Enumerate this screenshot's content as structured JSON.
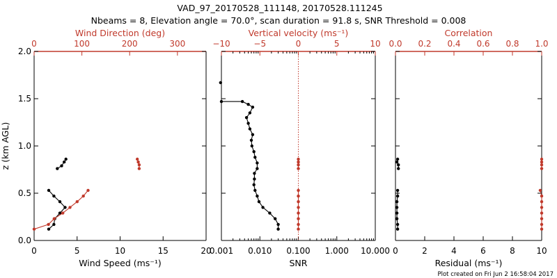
{
  "title_line1": "VAD_97_20170528_111148, 20170528.111245",
  "title_line2": "Nbeams = 8, Elevation angle = 70.0°, scan duration = 91.8 s, SNR Threshold = 0.008",
  "credit": "Plot created on Fri Jun  2 16:58:04 2017",
  "colors": {
    "primary": "#000000",
    "secondary": "#c0392b"
  },
  "chart_data": [
    {
      "type": "line",
      "ylabel": "z (km AGL)",
      "ylim": [
        0,
        2.0
      ],
      "yticks": [
        0.0,
        0.5,
        1.0,
        1.5,
        2.0
      ],
      "ytick_labels": [
        "0.0",
        "0.5",
        "1.0",
        "1.5",
        "2.0"
      ],
      "xlabel_bottom": "Wind Speed (ms⁻¹)",
      "xlim_bottom": [
        0,
        20
      ],
      "xticks_bottom": [
        0,
        5,
        10,
        15,
        20
      ],
      "xtick_labels_bottom": [
        "0",
        "5",
        "10",
        "15",
        "20"
      ],
      "xlabel_top": "Wind Direction (deg)",
      "xlim_top": [
        0,
        360
      ],
      "xticks_top": [
        0,
        100,
        200,
        300
      ],
      "xtick_labels_top": [
        "0",
        "100",
        "200",
        "300"
      ],
      "series": [
        {
          "axis": "bottom",
          "color": "#000000",
          "segments": [
            [
              [
                1.7,
                0.12
              ],
              [
                2.3,
                0.17
              ],
              [
                2.4,
                0.23
              ],
              [
                3.0,
                0.29
              ],
              [
                3.6,
                0.35
              ],
              [
                3.0,
                0.41
              ],
              [
                2.3,
                0.47
              ],
              [
                1.7,
                0.53
              ]
            ],
            [
              [
                2.7,
                0.76
              ],
              [
                3.2,
                0.79
              ],
              [
                3.5,
                0.83
              ],
              [
                3.7,
                0.86
              ]
            ]
          ]
        },
        {
          "axis": "top",
          "color": "#c0392b",
          "segments": [
            [
              [
                0,
                0.12
              ],
              [
                30,
                0.17
              ],
              [
                42,
                0.23
              ],
              [
                60,
                0.29
              ],
              [
                75,
                0.35
              ],
              [
                90,
                0.41
              ],
              [
                103,
                0.47
              ],
              [
                113,
                0.53
              ]
            ],
            [
              [
                216,
                0.86
              ],
              [
                218,
                0.83
              ],
              [
                220,
                0.8
              ],
              [
                220,
                0.76
              ]
            ]
          ]
        }
      ]
    },
    {
      "type": "line",
      "xlabel_bottom": "SNR",
      "xscale_bottom": "log",
      "xlim_bottom": [
        0.001,
        10.0
      ],
      "xticks_bottom": [
        0.001,
        0.01,
        0.1,
        1.0,
        10.0
      ],
      "xtick_labels_bottom": [
        "0.001",
        "0.010",
        "0.100",
        "1.000",
        "10.000"
      ],
      "xlabel_top": "Vertical velocity (ms⁻¹)",
      "xlim_top": [
        -10,
        10
      ],
      "xticks_top": [
        -10,
        -5,
        0,
        5,
        10
      ],
      "xtick_labels_top": [
        "−10",
        "−5",
        "0",
        "5",
        "10"
      ],
      "zero_line": {
        "axis": "top",
        "value": 0,
        "style": "dotted"
      },
      "series": [
        {
          "axis": "bottom",
          "color": "#000000",
          "segments": [
            [
              [
                0.03,
                0.12
              ],
              [
                0.03,
                0.17
              ],
              [
                0.025,
                0.23
              ],
              [
                0.018,
                0.29
              ],
              [
                0.012,
                0.35
              ],
              [
                0.0095,
                0.41
              ],
              [
                0.0085,
                0.47
              ],
              [
                0.0075,
                0.53
              ],
              [
                0.007,
                0.59
              ],
              [
                0.0072,
                0.65
              ],
              [
                0.0072,
                0.71
              ],
              [
                0.0085,
                0.76
              ],
              [
                0.0085,
                0.82
              ],
              [
                0.0075,
                0.88
              ],
              [
                0.007,
                0.94
              ],
              [
                0.0062,
                1.0
              ],
              [
                0.006,
                1.06
              ],
              [
                0.0065,
                1.12
              ],
              [
                0.0055,
                1.18
              ],
              [
                0.005,
                1.24
              ],
              [
                0.0045,
                1.3
              ],
              [
                0.0055,
                1.35
              ],
              [
                0.0065,
                1.41
              ],
              [
                0.005,
                1.44
              ],
              [
                0.0035,
                1.47
              ],
              [
                0.001,
                1.47
              ]
            ],
            [
              [
                0.00095,
                1.67
              ]
            ]
          ]
        },
        {
          "axis": "top",
          "color": "#c0392b",
          "segments": [
            [
              [
                0,
                0.12
              ],
              [
                0,
                0.17
              ],
              [
                0,
                0.23
              ],
              [
                0,
                0.29
              ],
              [
                0,
                0.35
              ],
              [
                0,
                0.41
              ],
              [
                0,
                0.47
              ],
              [
                0,
                0.53
              ]
            ],
            [
              [
                0,
                0.76
              ],
              [
                0,
                0.8
              ],
              [
                0,
                0.83
              ],
              [
                0,
                0.86
              ]
            ]
          ]
        }
      ]
    },
    {
      "type": "line",
      "xlabel_bottom": "Residual (ms⁻¹)",
      "xlim_bottom": [
        0,
        10
      ],
      "xticks_bottom": [
        0,
        2,
        4,
        6,
        8,
        10
      ],
      "xtick_labels_bottom": [
        "0",
        "2",
        "4",
        "6",
        "8",
        "10"
      ],
      "xlabel_top": "Correlation",
      "xlim_top": [
        0.0,
        1.0
      ],
      "xticks_top": [
        0.0,
        0.2,
        0.4,
        0.6,
        0.8,
        1.0
      ],
      "xtick_labels_top": [
        "0.0",
        "0.2",
        "0.4",
        "0.6",
        "0.8",
        "1.0"
      ],
      "series": [
        {
          "axis": "bottom",
          "color": "#000000",
          "segments": [
            [
              [
                0.15,
                0.12
              ],
              [
                0.15,
                0.17
              ],
              [
                0.1,
                0.23
              ],
              [
                0.1,
                0.29
              ],
              [
                0.1,
                0.35
              ],
              [
                0.1,
                0.41
              ],
              [
                0.15,
                0.47
              ],
              [
                0.15,
                0.53
              ]
            ],
            [
              [
                0.2,
                0.76
              ],
              [
                0.2,
                0.8
              ],
              [
                0.1,
                0.83
              ],
              [
                0.15,
                0.86
              ]
            ]
          ]
        },
        {
          "axis": "top",
          "color": "#c0392b",
          "segments": [
            [
              [
                1.0,
                0.12
              ],
              [
                1.0,
                0.17
              ],
              [
                1.0,
                0.23
              ],
              [
                1.0,
                0.29
              ],
              [
                1.0,
                0.35
              ],
              [
                1.0,
                0.41
              ],
              [
                1.0,
                0.47
              ],
              [
                0.99,
                0.53
              ]
            ],
            [
              [
                1.0,
                0.76
              ],
              [
                1.0,
                0.8
              ],
              [
                1.0,
                0.83
              ],
              [
                1.0,
                0.86
              ]
            ]
          ]
        }
      ]
    }
  ]
}
